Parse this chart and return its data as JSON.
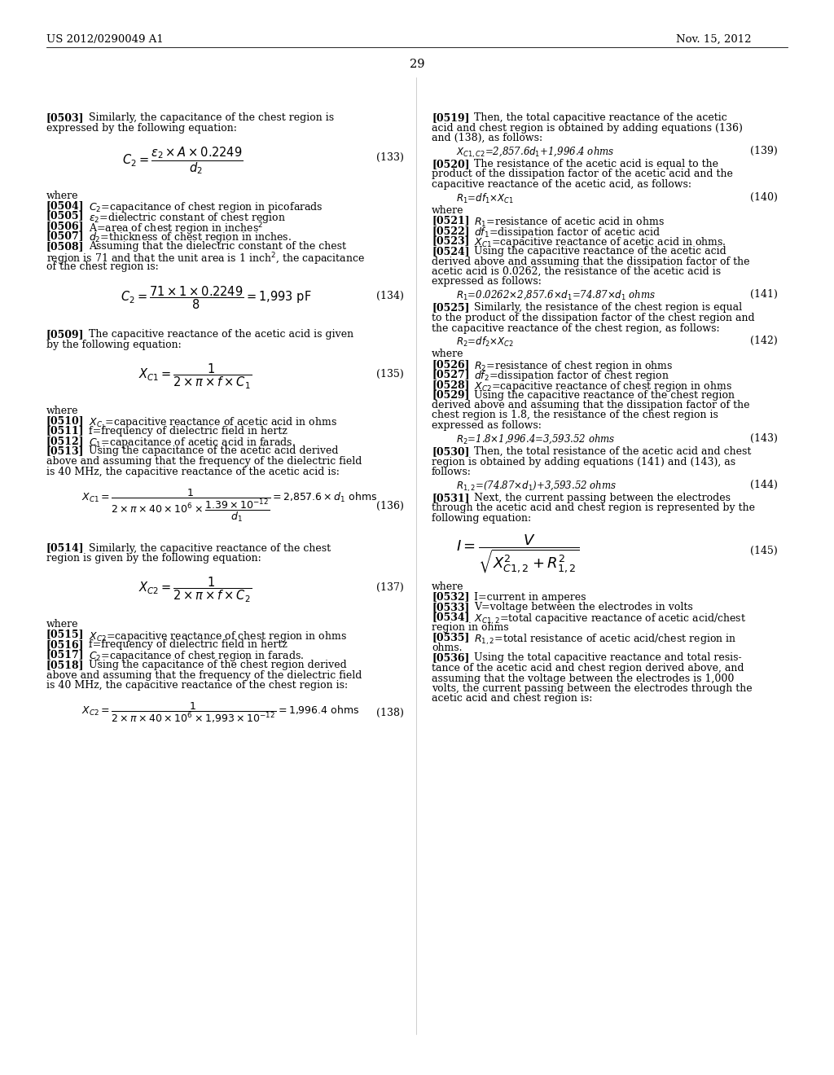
{
  "background_color": "#ffffff",
  "header_left": "US 2012/0290049 A1",
  "header_right": "Nov. 15, 2012",
  "page_number": "29",
  "figsize": [
    10.24,
    13.2
  ],
  "dpi": 100
}
